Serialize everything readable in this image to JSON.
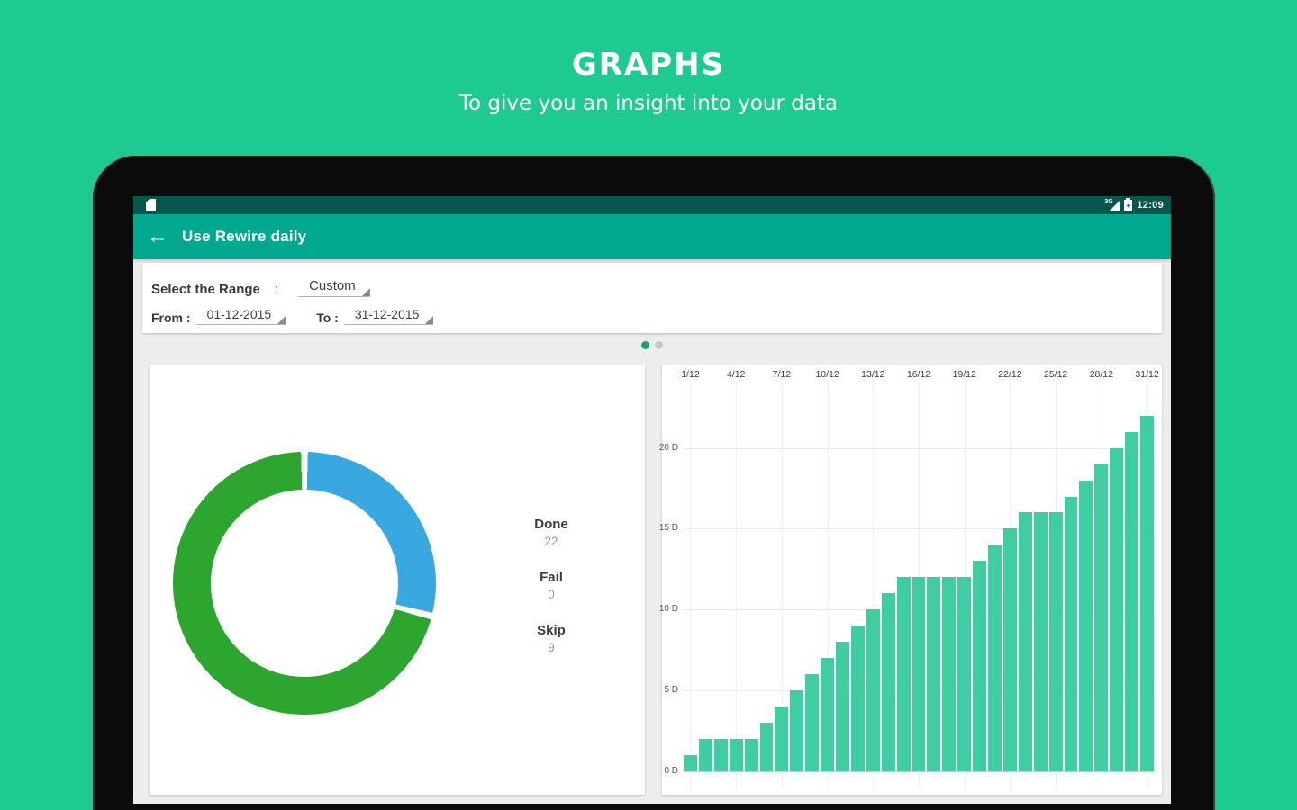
{
  "hero": {
    "title": "GRAPHS",
    "subtitle": "To give you an insight into your data"
  },
  "status_bar": {
    "time": "12:09",
    "network": "3G"
  },
  "app_bar": {
    "title": "Use Rewire daily",
    "back_icon": "←"
  },
  "filter": {
    "range_label": "Select the Range",
    "colon": ":",
    "range_value": "Custom",
    "from_label": "From :",
    "from_value": "01-12-2015",
    "to_label": "To :",
    "to_value": "31-12-2015"
  },
  "pager": {
    "count": 2,
    "active_index": 0
  },
  "legend": [
    {
      "label": "Done",
      "value": "22"
    },
    {
      "label": "Fail",
      "value": "0"
    },
    {
      "label": "Skip",
      "value": "9"
    }
  ],
  "colors": {
    "background_green": "#1dcb90",
    "status_bar": "#05564c",
    "app_bar": "#00a88f",
    "screen_bg": "#ededed",
    "bar_mint": "#3fcda2",
    "donut_done_green": "#2ca62f",
    "donut_skip_blue": "#3aa8e0",
    "dot_active": "#1aa562",
    "dot_inactive": "#c6c6c6"
  },
  "chart_data": [
    {
      "type": "pie",
      "labels": [
        "Done",
        "Fail",
        "Skip"
      ],
      "values": [
        22,
        0,
        9
      ],
      "slice_colors": [
        "#2ca62f",
        null,
        "#3aa8e0"
      ],
      "hole": 0.72,
      "legend_position": "right",
      "draw_order": [
        2,
        0
      ],
      "gap_deg": 3
    },
    {
      "type": "bar",
      "title": "",
      "xlabel": "",
      "ylabel": "",
      "x_axis_position": "top",
      "x_labels_top": [
        "1/12",
        "4/12",
        "7/12",
        "10/12",
        "13/12",
        "16/12",
        "19/12",
        "22/12",
        "25/12",
        "28/12",
        "31/12"
      ],
      "x_label_step": 3,
      "days": 31,
      "values": [
        1,
        2,
        2,
        2,
        2,
        3,
        4,
        5,
        6,
        7,
        8,
        9,
        10,
        11,
        12,
        12,
        12,
        12,
        12,
        13,
        14,
        15,
        16,
        16,
        16,
        17,
        18,
        19,
        20,
        21,
        22
      ],
      "yticks": [
        "0 D",
        "5 D",
        "10 D",
        "15 D",
        "20 D"
      ],
      "ytick_values": [
        0,
        5,
        10,
        15,
        20
      ],
      "ylim": [
        0,
        24
      ],
      "grid": true,
      "bar_color": "#3fcda2"
    }
  ]
}
